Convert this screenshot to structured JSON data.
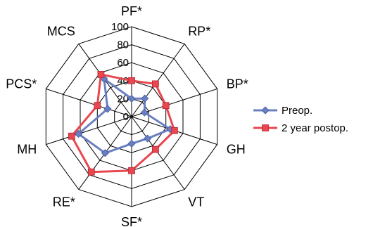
{
  "chart_data": {
    "type": "radar",
    "categories": [
      "PF*",
      "RP*",
      "BP*",
      "GH",
      "VT",
      "SF*",
      "RE*",
      "MH",
      "PCS*",
      "MCS"
    ],
    "series": [
      {
        "name": "Preop.",
        "color": "#6a7fc1",
        "marker": "diamond",
        "values": [
          20,
          25,
          15,
          45,
          30,
          30,
          50,
          62,
          28,
          52
        ]
      },
      {
        "name": "2 year postop.",
        "color": "#e8474f",
        "marker": "square",
        "values": [
          40,
          45,
          40,
          50,
          45,
          60,
          76,
          70,
          40,
          58
        ]
      }
    ],
    "rlim": [
      0,
      100
    ],
    "ticks": [
      0,
      20,
      40,
      60,
      80,
      100
    ],
    "grid": true,
    "legend_position": "right"
  }
}
